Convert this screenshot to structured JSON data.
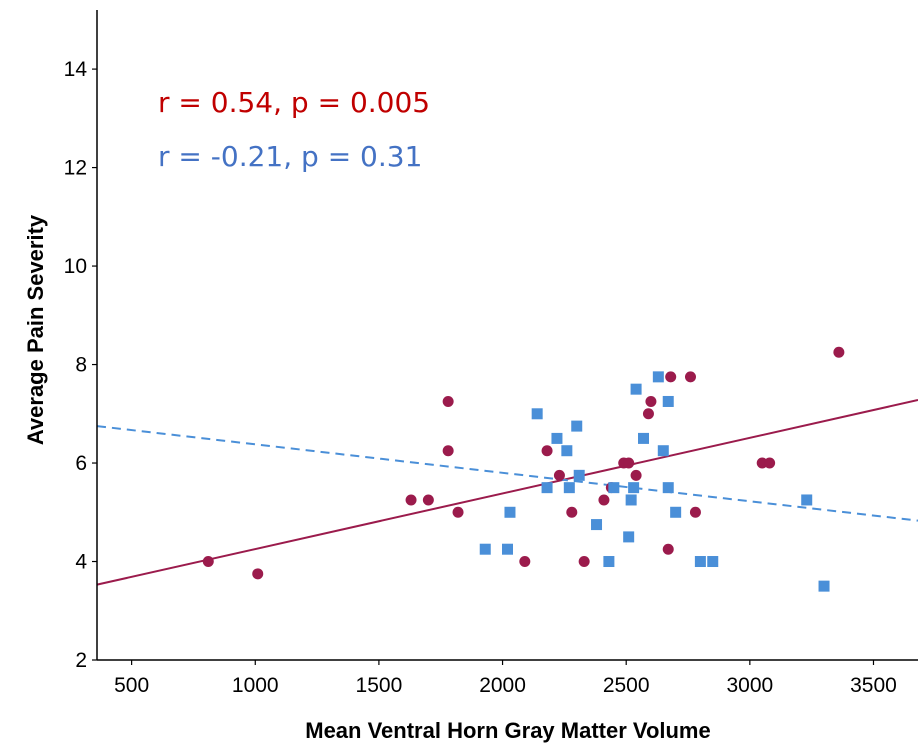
{
  "chart_data": {
    "type": "scatter",
    "xlabel": "Mean Ventral Horn Gray Matter Volume",
    "ylabel": "Average Pain Severity",
    "xlim": [
      360,
      3680
    ],
    "ylim": [
      2,
      15.2
    ],
    "x_ticks": [
      500,
      1000,
      1500,
      2000,
      2500,
      3000,
      3500
    ],
    "y_ticks": [
      2,
      4,
      6,
      8,
      10,
      12,
      14
    ],
    "grid": false,
    "series": [
      {
        "marker": "circle",
        "color": "#9b1b4c",
        "points": [
          [
            810,
            4.0
          ],
          [
            1010,
            3.75
          ],
          [
            1630,
            5.25
          ],
          [
            1700,
            5.25
          ],
          [
            1780,
            7.25
          ],
          [
            1780,
            6.25
          ],
          [
            1820,
            5.0
          ],
          [
            2090,
            4.0
          ],
          [
            2180,
            6.25
          ],
          [
            2230,
            5.75
          ],
          [
            2280,
            5.0
          ],
          [
            2330,
            4.0
          ],
          [
            2410,
            5.25
          ],
          [
            2440,
            5.5
          ],
          [
            2490,
            6.0
          ],
          [
            2510,
            6.0
          ],
          [
            2540,
            5.75
          ],
          [
            2590,
            7.0
          ],
          [
            2600,
            7.25
          ],
          [
            2670,
            4.25
          ],
          [
            2680,
            7.75
          ],
          [
            2760,
            7.75
          ],
          [
            2780,
            5.0
          ],
          [
            3050,
            6.0
          ],
          [
            3080,
            6.0
          ],
          [
            3360,
            8.25
          ]
        ],
        "fit_line": {
          "x": [
            360,
            3680
          ],
          "y": [
            3.53,
            7.28
          ],
          "style": "solid"
        }
      },
      {
        "marker": "square",
        "color": "#4a8fd8",
        "points": [
          [
            1930,
            4.25
          ],
          [
            2020,
            4.25
          ],
          [
            2030,
            5.0
          ],
          [
            2140,
            7.0
          ],
          [
            2180,
            5.5
          ],
          [
            2220,
            6.5
          ],
          [
            2260,
            6.25
          ],
          [
            2270,
            5.5
          ],
          [
            2300,
            6.75
          ],
          [
            2310,
            5.75
          ],
          [
            2380,
            4.75
          ],
          [
            2430,
            4.0
          ],
          [
            2450,
            5.5
          ],
          [
            2510,
            4.5
          ],
          [
            2520,
            5.25
          ],
          [
            2530,
            5.5
          ],
          [
            2540,
            7.5
          ],
          [
            2570,
            6.5
          ],
          [
            2630,
            7.75
          ],
          [
            2650,
            6.25
          ],
          [
            2670,
            7.25
          ],
          [
            2670,
            5.5
          ],
          [
            2700,
            5.0
          ],
          [
            2800,
            4.0
          ],
          [
            2850,
            4.0
          ],
          [
            3230,
            5.25
          ],
          [
            3300,
            3.5
          ]
        ],
        "fit_line": {
          "x": [
            360,
            3680
          ],
          "y": [
            6.75,
            4.83
          ],
          "style": "dashed"
        }
      }
    ],
    "annotations": [
      {
        "text": "r = 0.54, p = 0.005",
        "color": "#c00000"
      },
      {
        "text": "r = -0.21, p = 0.31",
        "color": "#4472c4"
      }
    ]
  }
}
